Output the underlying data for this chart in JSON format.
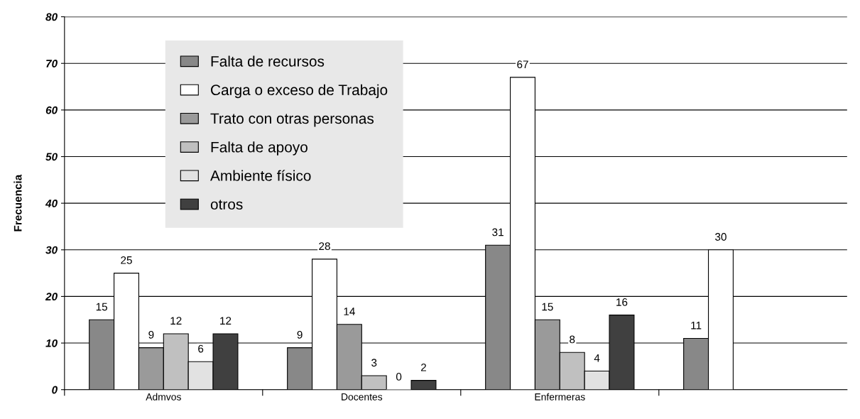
{
  "chart_data": {
    "type": "bar",
    "ylabel": "Frecuencia",
    "categories": [
      "Admvos",
      "Docentes",
      "Enfermeras",
      null
    ],
    "series": [
      {
        "name": "Falta de recursos",
        "color": "#888888",
        "values": [
          15,
          9,
          31,
          11
        ]
      },
      {
        "name": "Carga o exceso de Trabajo",
        "color": "#ffffff",
        "values": [
          25,
          28,
          67,
          30
        ]
      },
      {
        "name": "Trato con otras personas",
        "color": "#9a9a9a",
        "values": [
          9,
          14,
          15,
          null
        ]
      },
      {
        "name": "Falta de apoyo",
        "color": "#c0c0c0",
        "values": [
          12,
          3,
          8,
          null
        ]
      },
      {
        "name": "Ambiente físico",
        "color": "#e2e2e2",
        "values": [
          6,
          0,
          4,
          null
        ]
      },
      {
        "name": "otros",
        "color": "#404040",
        "values": [
          12,
          2,
          16,
          null
        ]
      }
    ],
    "ylim": [
      0,
      80
    ],
    "yticks": [
      0,
      10,
      20,
      30,
      40,
      50,
      60,
      70,
      80
    ],
    "grid": "y",
    "legend": "top left",
    "data_labels": true
  }
}
